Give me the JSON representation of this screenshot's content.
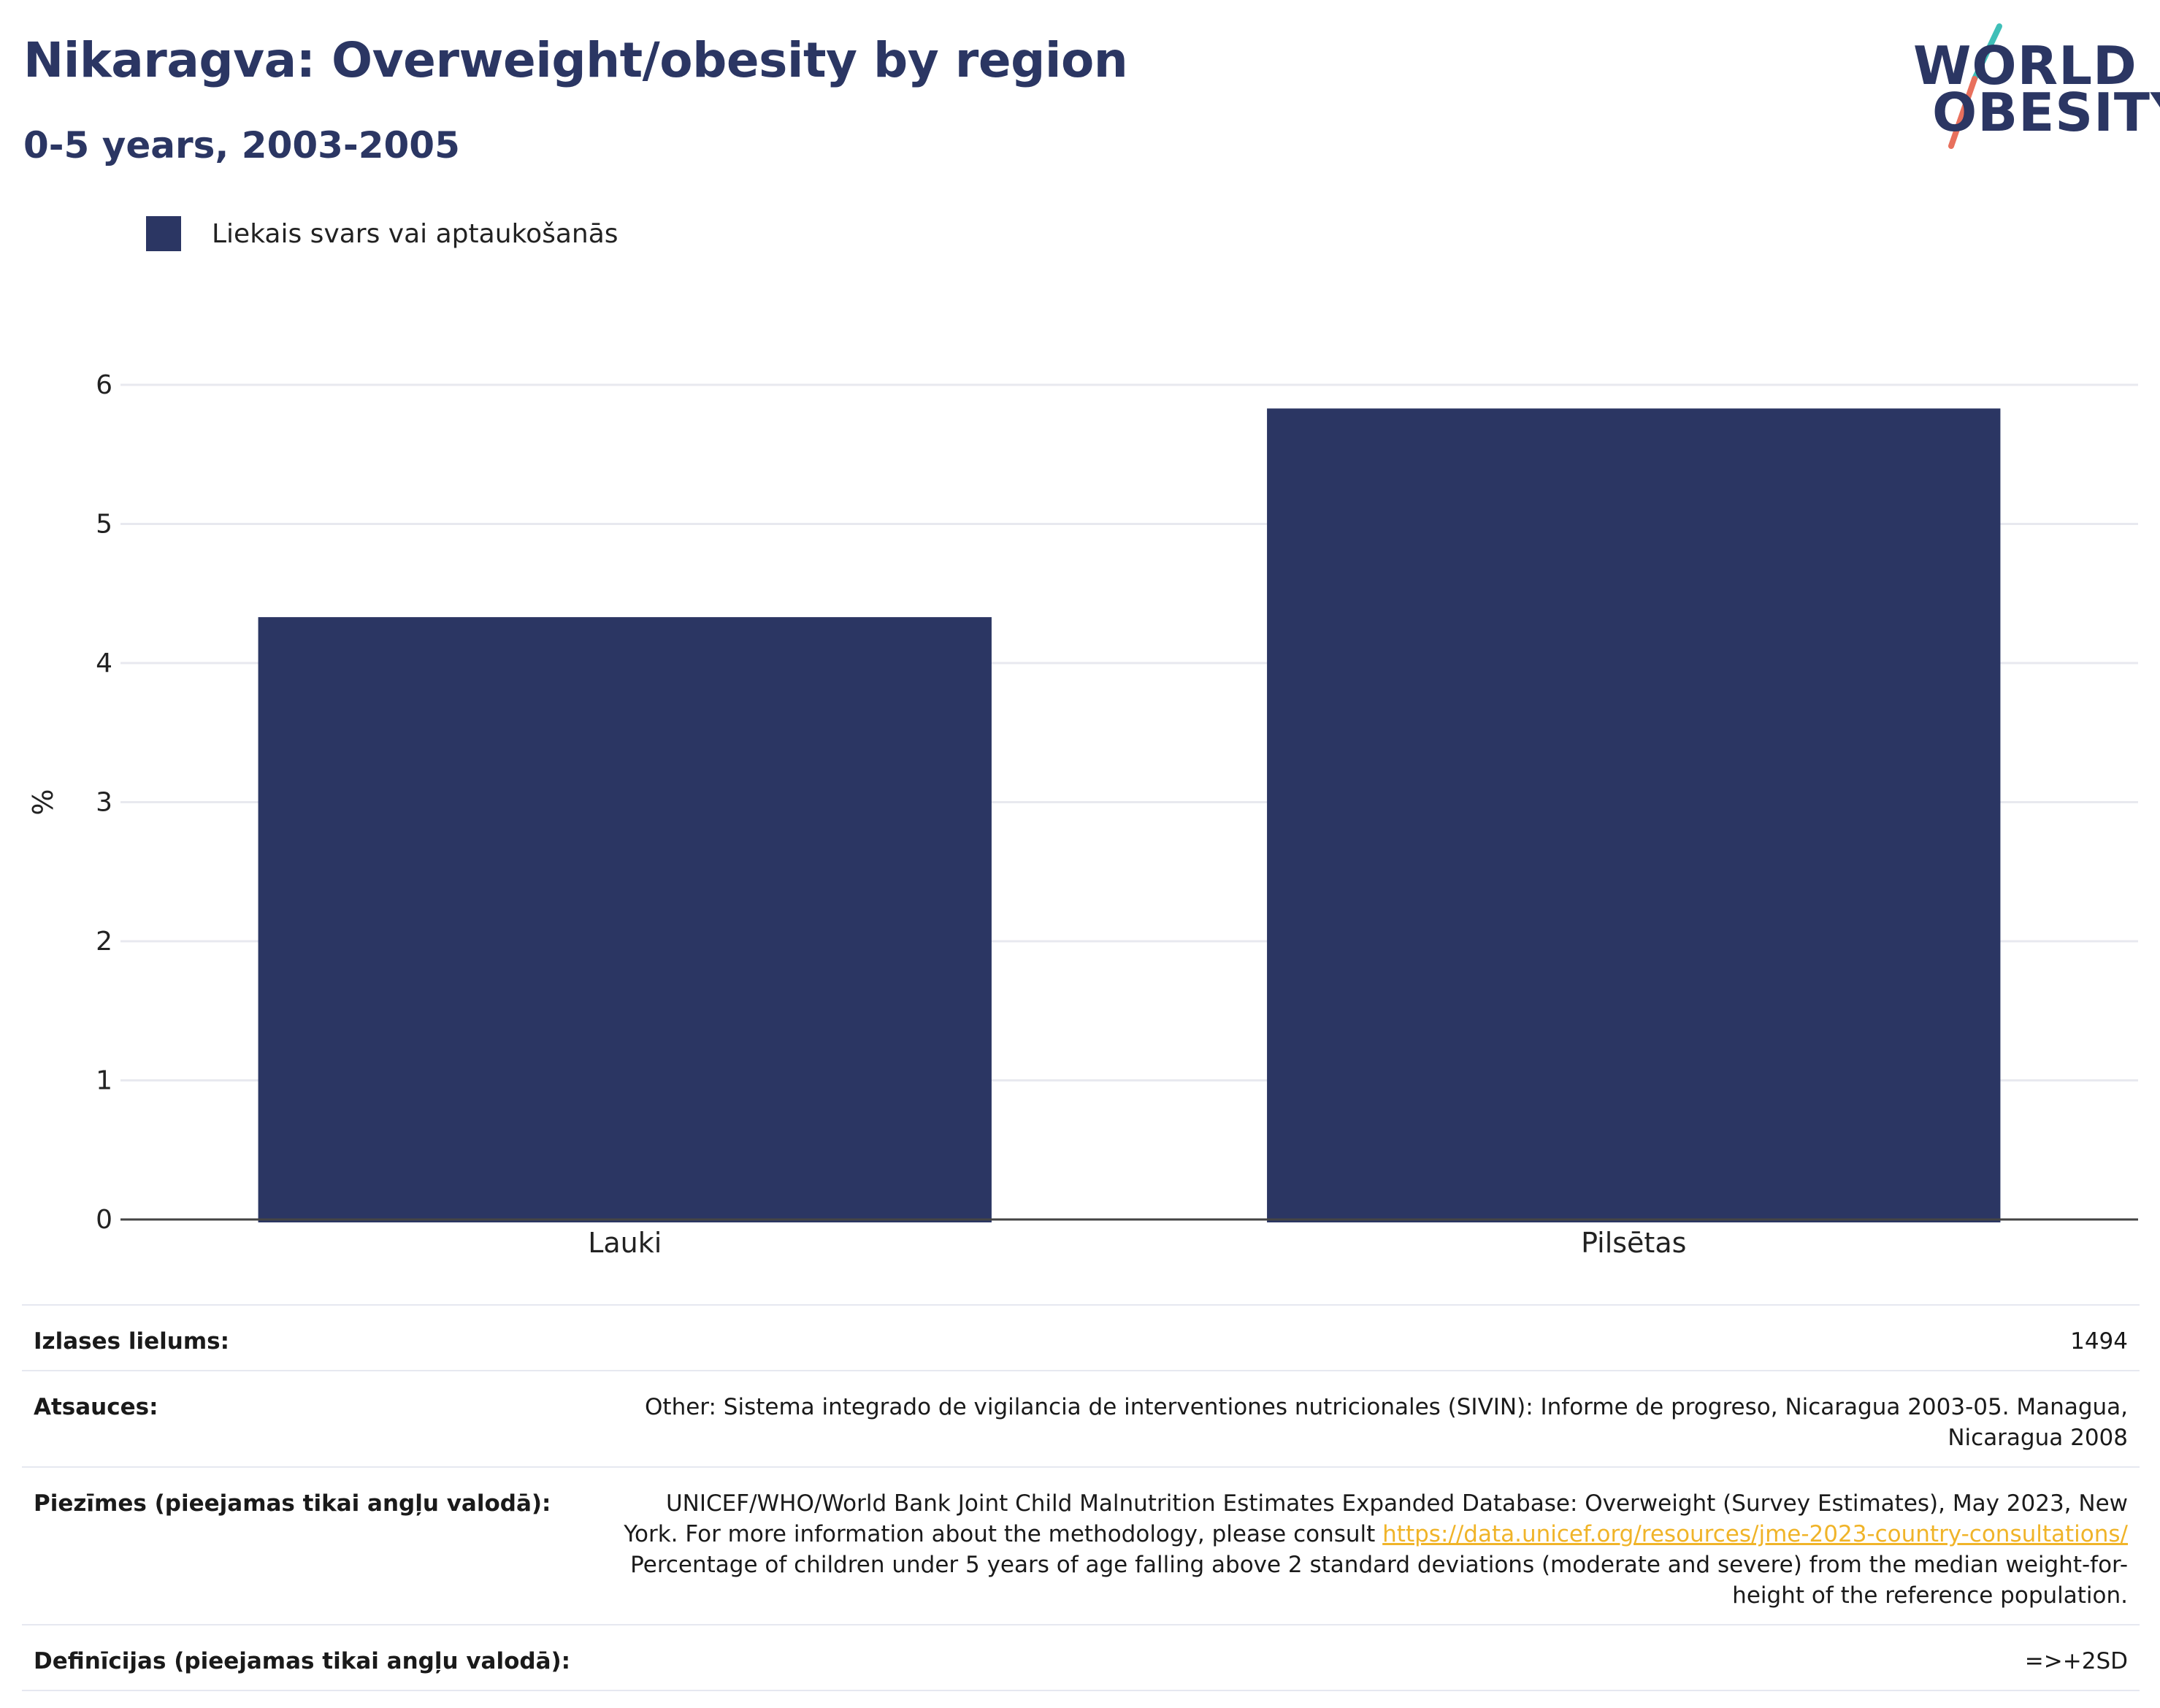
{
  "header": {
    "title": "Nikaragva: Overweight/obesity by region",
    "subtitle": "0-5 years, 2003-2005"
  },
  "logo": {
    "line1": "WORLD",
    "line2": "OBESITY"
  },
  "chart_data": {
    "type": "bar",
    "categories": [
      "Lauki",
      "Pilsētas"
    ],
    "series": [
      {
        "name": "Liekais svars vai aptaukošanās",
        "values": [
          4.33,
          5.83
        ],
        "color": "#2b3663"
      }
    ],
    "xlabel": "",
    "ylabel": "%",
    "ylim": [
      0,
      6
    ],
    "yticks": [
      0,
      1,
      2,
      3,
      4,
      5,
      6
    ],
    "grid": true,
    "legend_position": "top-left"
  },
  "footer": {
    "sample_size": {
      "label": "Izlases lielums:",
      "value": "1494"
    },
    "references": {
      "label": "Atsauces:",
      "value": "Other: Sistema integrado de vigilancia de interventiones nutricionales (SIVIN): Informe de progreso, Nicaragua 2003-05. Managua, Nicaragua 2008"
    },
    "notes": {
      "label": "Piezīmes (pieejamas tikai angļu valodā):",
      "text1": "UNICEF/WHO/World Bank Joint Child Malnutrition Estimates Expanded Database: Overweight (Survey Estimates), May 2023, New York. For more information about the methodology, please consult ",
      "link": "https://data.unicef.org/resources/jme-2023-country-consultations/",
      "text2": " Percentage of children under 5 years of age falling above 2 standard deviations (moderate and severe) from the median weight-for-height of the reference population."
    },
    "definitions": {
      "label": "Definīcijas (pieejamas tikai angļu valodā):",
      "value": "=>+2SD"
    }
  }
}
